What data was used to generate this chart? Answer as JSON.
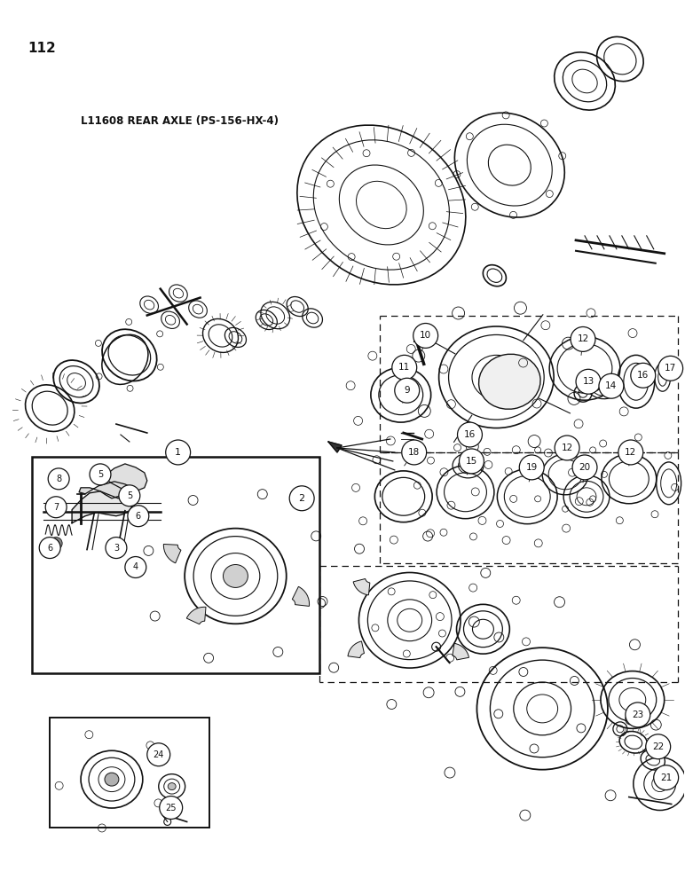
{
  "page_number": "112",
  "title": "L11608 REAR AXLE (PS-156-HX-4)",
  "background_color": "#ffffff",
  "ink_color": "#111111",
  "fig_width": 7.72,
  "fig_height": 10.0
}
